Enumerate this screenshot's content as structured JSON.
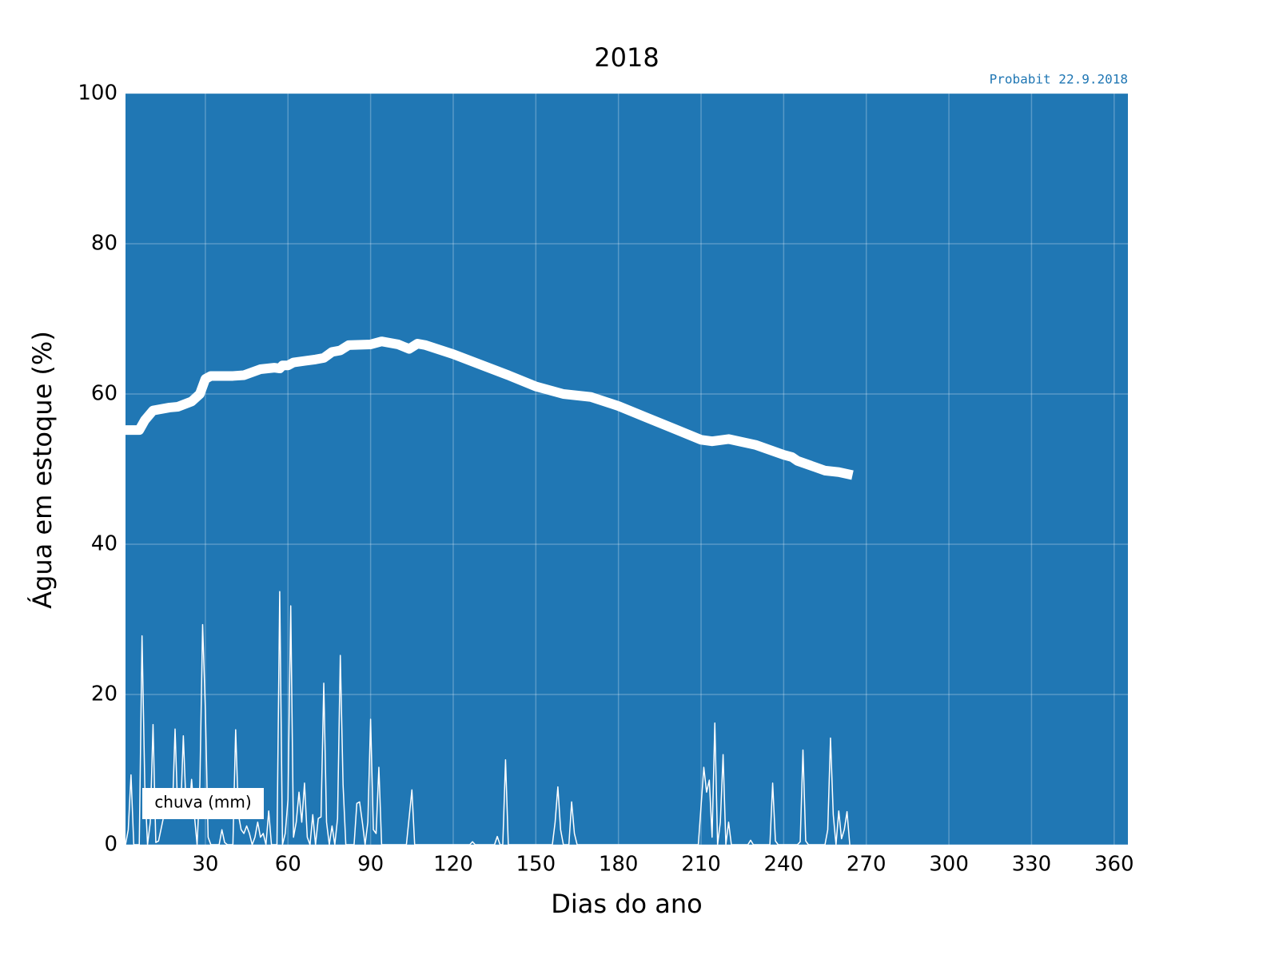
{
  "chart_data": {
    "type": "line",
    "title": "2018",
    "annotation": "Probabit 22.9.2018",
    "xlabel": "Dias do ano",
    "ylabel": "Água em estoque (%)",
    "xlim": [
      1,
      365
    ],
    "xticks": [
      30,
      60,
      90,
      120,
      150,
      180,
      210,
      240,
      270,
      300,
      330,
      360
    ],
    "ylim": [
      0,
      100
    ],
    "yticks": [
      0,
      20,
      40,
      60,
      80,
      100
    ],
    "grid": true,
    "facecolor": "#2077b4",
    "legend": "lower left",
    "series": [
      {
        "color": "#ffffff",
        "x": [
          1,
          6,
          8,
          11,
          17,
          20,
          25,
          28,
          30,
          32,
          40,
          44,
          50,
          55,
          57,
          58,
          60,
          62,
          70,
          73,
          76,
          79,
          82,
          90,
          94,
          100,
          104,
          107,
          110,
          120,
          130,
          140,
          150,
          160,
          170,
          180,
          190,
          200,
          210,
          214,
          220,
          230,
          240,
          243,
          245,
          255,
          260,
          265
        ],
        "values": [
          55.2,
          55.2,
          56.5,
          57.8,
          58.2,
          58.3,
          59.0,
          60.0,
          62.0,
          62.4,
          62.4,
          62.5,
          63.3,
          63.5,
          63.4,
          63.8,
          63.8,
          64.2,
          64.6,
          64.8,
          65.6,
          65.8,
          66.5,
          66.6,
          67.0,
          66.6,
          66.0,
          66.7,
          66.5,
          65.3,
          63.9,
          62.5,
          61.0,
          60.0,
          59.6,
          58.4,
          56.9,
          55.4,
          53.9,
          53.7,
          54.0,
          53.2,
          51.9,
          51.6,
          51.1,
          49.8,
          49.6,
          49.2
        ]
      },
      {
        "name": "chuva (mm)",
        "color": "#ffffff",
        "x": [
          1,
          2,
          3,
          4,
          6,
          7,
          8,
          9,
          10,
          11,
          12,
          13,
          15,
          16,
          17,
          18,
          19,
          20,
          21,
          22,
          23,
          24,
          25,
          26,
          27,
          28,
          29,
          30,
          31,
          32,
          35,
          36,
          37,
          38,
          40,
          41,
          42,
          43,
          44,
          45,
          46,
          47,
          48,
          49,
          50,
          51,
          52,
          53,
          54,
          56,
          57,
          58,
          59,
          60,
          61,
          62,
          63,
          64,
          65,
          66,
          67,
          68,
          69,
          70,
          71,
          72,
          73,
          74,
          75,
          76,
          77,
          78,
          79,
          80,
          81,
          84,
          85,
          86,
          87,
          88,
          89,
          90,
          91,
          92,
          93,
          94,
          103,
          105,
          106,
          126,
          127,
          128,
          135,
          136,
          137,
          138,
          139,
          140,
          156,
          157,
          158,
          159,
          160,
          162,
          163,
          164,
          165,
          209,
          211,
          212,
          213,
          214,
          215,
          216,
          217,
          218,
          219,
          220,
          221,
          227,
          228,
          229,
          235,
          236,
          237,
          238,
          245,
          246,
          247,
          248,
          249,
          255,
          256,
          257,
          258,
          259,
          260,
          261,
          262,
          263,
          264
        ],
        "values": [
          0,
          2,
          9.3,
          0,
          0,
          27.8,
          8,
          0,
          3,
          16,
          0.3,
          0.5,
          4,
          3.5,
          4,
          4,
          15.4,
          4,
          4,
          14.5,
          5,
          4,
          8.7,
          4,
          0,
          8,
          29.3,
          18,
          1,
          0,
          0,
          2,
          0.3,
          0,
          0,
          15.3,
          4,
          2,
          1.5,
          2.5,
          1.5,
          0,
          1,
          3,
          1,
          1.5,
          0,
          4.5,
          0,
          0,
          33.7,
          0,
          1.5,
          6,
          31.8,
          1,
          3,
          7,
          3,
          8.2,
          1,
          0,
          4,
          0,
          3.5,
          3.7,
          21.5,
          3,
          0,
          2.5,
          0,
          3.5,
          25.2,
          8,
          0,
          0,
          5.5,
          5.7,
          3,
          0,
          3,
          16.7,
          2,
          1.5,
          10.3,
          0,
          0,
          7.3,
          0,
          0,
          0.4,
          0,
          0,
          1.1,
          0,
          0,
          11.3,
          0,
          0,
          3,
          7.7,
          2,
          0,
          0,
          5.7,
          1.5,
          0,
          0,
          10.3,
          7,
          8.6,
          1,
          16.2,
          0,
          3,
          12,
          0,
          3,
          0,
          0,
          0.6,
          0,
          0,
          8.2,
          0.5,
          0,
          0,
          0.4,
          12.6,
          0.5,
          0,
          0,
          2,
          14.2,
          4,
          0,
          4.5,
          0.8,
          2,
          4.4,
          0
        ]
      }
    ]
  }
}
